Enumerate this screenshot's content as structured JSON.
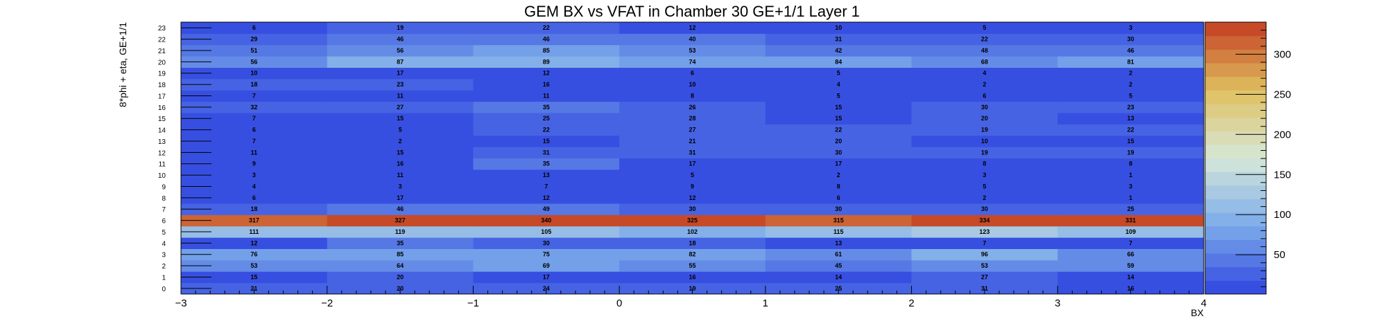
{
  "chart_data": {
    "type": "heatmap",
    "title": "GEM BX vs VFAT in Chamber 30 GE+1/1 Layer 1",
    "xlabel": "BX",
    "ylabel": "8*phi + eta, GE+1/1",
    "xlim": [
      -3,
      4
    ],
    "xticks": [
      "−3",
      "−2",
      "−1",
      "0",
      "1",
      "2",
      "3",
      "4"
    ],
    "x_bins": [
      -3,
      -2,
      -1,
      0,
      1,
      2,
      3
    ],
    "y_bins": [
      0,
      1,
      2,
      3,
      4,
      5,
      6,
      7,
      8,
      9,
      10,
      11,
      12,
      13,
      14,
      15,
      16,
      17,
      18,
      19,
      20,
      21,
      22,
      23
    ],
    "yticks": [
      "0",
      "1",
      "2",
      "3",
      "4",
      "5",
      "6",
      "7",
      "8",
      "9",
      "10",
      "11",
      "12",
      "13",
      "14",
      "15",
      "16",
      "17",
      "18",
      "19",
      "20",
      "21",
      "22",
      "23"
    ],
    "values": [
      [
        21,
        20,
        24,
        19,
        25,
        31,
        16
      ],
      [
        15,
        20,
        17,
        16,
        14,
        27,
        14
      ],
      [
        53,
        64,
        69,
        55,
        45,
        53,
        59
      ],
      [
        76,
        85,
        75,
        82,
        61,
        96,
        66
      ],
      [
        12,
        35,
        30,
        18,
        13,
        7,
        7
      ],
      [
        111,
        119,
        105,
        102,
        115,
        123,
        109
      ],
      [
        317,
        327,
        340,
        325,
        315,
        334,
        331
      ],
      [
        18,
        46,
        49,
        30,
        30,
        30,
        25
      ],
      [
        6,
        17,
        12,
        12,
        6,
        2,
        1
      ],
      [
        4,
        3,
        7,
        9,
        8,
        5,
        3
      ],
      [
        3,
        11,
        13,
        5,
        2,
        3,
        1
      ],
      [
        9,
        16,
        35,
        17,
        17,
        8,
        8
      ],
      [
        11,
        15,
        31,
        31,
        30,
        19,
        19
      ],
      [
        7,
        2,
        15,
        21,
        20,
        10,
        15
      ],
      [
        6,
        5,
        22,
        27,
        22,
        19,
        22
      ],
      [
        7,
        15,
        25,
        28,
        15,
        20,
        13
      ],
      [
        32,
        27,
        35,
        26,
        15,
        30,
        23
      ],
      [
        7,
        11,
        11,
        8,
        5,
        6,
        5
      ],
      [
        18,
        23,
        16,
        10,
        4,
        2,
        2
      ],
      [
        10,
        17,
        12,
        6,
        5,
        4,
        2
      ],
      [
        56,
        87,
        89,
        74,
        84,
        68,
        81
      ],
      [
        51,
        56,
        85,
        53,
        42,
        48,
        46
      ],
      [
        29,
        46,
        46,
        40,
        31,
        22,
        30
      ],
      [
        6,
        19,
        22,
        12,
        10,
        5,
        3
      ]
    ],
    "zlim": [
      1,
      340
    ],
    "zticks": [
      "50",
      "100",
      "150",
      "200",
      "250",
      "300"
    ],
    "colorbar_placement": "right",
    "grid": false,
    "colors": {
      "low": "#2f45e0",
      "mid_low": "#7aaaea",
      "mid": "#d6e8d8",
      "mid_high": "#e0c060",
      "high": "#c33d22"
    }
  }
}
